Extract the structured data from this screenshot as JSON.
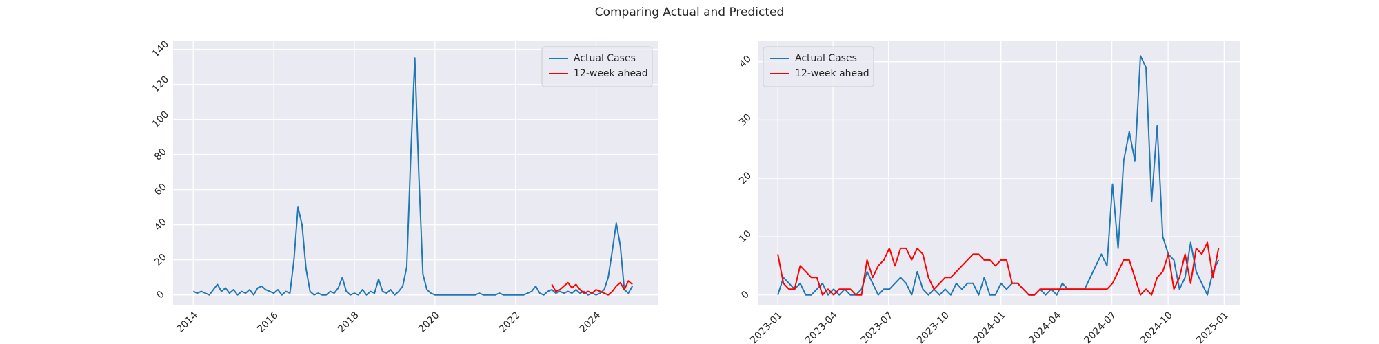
{
  "title": "Comparing Actual and Predicted",
  "chart_data": [
    {
      "type": "line",
      "legend": "upper right",
      "grid": true,
      "x": [
        2014.0,
        2014.1,
        2014.2,
        2014.3,
        2014.4,
        2014.5,
        2014.6,
        2014.7,
        2014.8,
        2014.9,
        2015.0,
        2015.1,
        2015.2,
        2015.3,
        2015.4,
        2015.5,
        2015.6,
        2015.7,
        2015.8,
        2015.9,
        2016.0,
        2016.1,
        2016.2,
        2016.3,
        2016.4,
        2016.5,
        2016.6,
        2016.7,
        2016.8,
        2016.9,
        2017.0,
        2017.1,
        2017.2,
        2017.3,
        2017.4,
        2017.5,
        2017.6,
        2017.7,
        2017.8,
        2017.9,
        2018.0,
        2018.1,
        2018.2,
        2018.3,
        2018.4,
        2018.5,
        2018.6,
        2018.7,
        2018.8,
        2018.9,
        2019.0,
        2019.1,
        2019.2,
        2019.3,
        2019.4,
        2019.5,
        2019.6,
        2019.7,
        2019.8,
        2019.9,
        2020.0,
        2020.1,
        2020.2,
        2020.3,
        2020.4,
        2020.5,
        2020.6,
        2020.7,
        2020.8,
        2020.9,
        2021.0,
        2021.1,
        2021.2,
        2021.3,
        2021.4,
        2021.5,
        2021.6,
        2021.7,
        2021.8,
        2021.9,
        2022.0,
        2022.1,
        2022.2,
        2022.3,
        2022.4,
        2022.5,
        2022.6,
        2022.7,
        2022.8,
        2022.9,
        2023.0,
        2023.1,
        2023.2,
        2023.3,
        2023.4,
        2023.5,
        2023.6,
        2023.7,
        2023.8,
        2023.9,
        2024.0,
        2024.1,
        2024.2,
        2024.3,
        2024.4,
        2024.5,
        2024.6,
        2024.7,
        2024.8,
        2024.9
      ],
      "xlim": [
        2013.5,
        2025.53
      ],
      "xticks": [
        2014,
        2016,
        2018,
        2020,
        2022,
        2024
      ],
      "ylim": [
        -6,
        144.5
      ],
      "yticks": [
        0,
        20,
        40,
        60,
        80,
        100,
        120,
        140
      ],
      "series": [
        {
          "name": "Actual Cases",
          "color": "#1f77b4",
          "values": [
            2,
            1,
            2,
            1,
            0,
            3,
            6,
            2,
            4,
            1,
            3,
            0,
            2,
            1,
            3,
            0,
            4,
            5,
            3,
            2,
            1,
            3,
            0,
            2,
            1,
            20,
            50,
            40,
            15,
            2,
            0,
            1,
            0,
            0,
            2,
            1,
            4,
            10,
            2,
            0,
            1,
            0,
            3,
            0,
            2,
            1,
            9,
            2,
            1,
            3,
            0,
            2,
            5,
            16,
            80,
            135,
            68,
            12,
            3,
            1,
            0,
            0,
            0,
            0,
            0,
            0,
            0,
            0,
            0,
            0,
            0,
            1,
            0,
            0,
            0,
            0,
            1,
            0,
            0,
            0,
            0,
            0,
            0,
            1,
            2,
            5,
            1,
            0,
            2,
            3,
            1,
            2,
            1,
            2,
            1,
            3,
            1,
            2,
            0,
            1,
            0,
            1,
            3,
            10,
            25,
            41,
            28,
            3,
            1,
            5
          ]
        },
        {
          "name": "12-week ahead",
          "color": "#ff0000",
          "values": [
            null,
            null,
            null,
            null,
            null,
            null,
            null,
            null,
            null,
            null,
            null,
            null,
            null,
            null,
            null,
            null,
            null,
            null,
            null,
            null,
            null,
            null,
            null,
            null,
            null,
            null,
            null,
            null,
            null,
            null,
            null,
            null,
            null,
            null,
            null,
            null,
            null,
            null,
            null,
            null,
            null,
            null,
            null,
            null,
            null,
            null,
            null,
            null,
            null,
            null,
            null,
            null,
            null,
            null,
            null,
            null,
            null,
            null,
            null,
            null,
            null,
            null,
            null,
            null,
            null,
            null,
            null,
            null,
            null,
            null,
            null,
            null,
            null,
            null,
            null,
            null,
            null,
            null,
            null,
            null,
            null,
            null,
            null,
            null,
            null,
            null,
            null,
            null,
            null,
            6,
            2,
            3,
            5,
            7,
            4,
            6,
            3,
            1,
            2,
            1,
            3,
            2,
            1,
            0,
            2,
            5,
            7,
            3,
            8,
            6
          ]
        }
      ]
    },
    {
      "type": "line",
      "legend": "upper left",
      "grid": true,
      "x": [
        2023.0,
        2023.025,
        2023.05,
        2023.075,
        2023.1,
        2023.125,
        2023.15,
        2023.175,
        2023.2,
        2023.225,
        2023.25,
        2023.275,
        2023.3,
        2023.325,
        2023.35,
        2023.375,
        2023.4,
        2023.425,
        2023.45,
        2023.475,
        2023.5,
        2023.525,
        2023.55,
        2023.575,
        2023.6,
        2023.625,
        2023.65,
        2023.675,
        2023.7,
        2023.725,
        2023.75,
        2023.775,
        2023.8,
        2023.825,
        2023.85,
        2023.875,
        2023.9,
        2023.925,
        2023.95,
        2023.975,
        2024.0,
        2024.025,
        2024.05,
        2024.075,
        2024.1,
        2024.125,
        2024.15,
        2024.175,
        2024.2,
        2024.225,
        2024.25,
        2024.275,
        2024.3,
        2024.325,
        2024.35,
        2024.375,
        2024.4,
        2024.425,
        2024.45,
        2024.475,
        2024.5,
        2024.525,
        2024.55,
        2024.575,
        2024.6,
        2024.625,
        2024.65,
        2024.675,
        2024.7,
        2024.725,
        2024.75,
        2024.775,
        2024.8,
        2024.825,
        2024.85,
        2024.875,
        2024.9,
        2024.925,
        2024.95,
        2024.975
      ],
      "xlim": [
        2022.91,
        2025.07
      ],
      "xticks": [
        {
          "value": 2023.0,
          "label": "2023-01"
        },
        {
          "value": 2023.247,
          "label": "2023-04"
        },
        {
          "value": 2023.496,
          "label": "2023-07"
        },
        {
          "value": 2023.748,
          "label": "2023-10"
        },
        {
          "value": 2024.0,
          "label": "2024-01"
        },
        {
          "value": 2024.249,
          "label": "2024-04"
        },
        {
          "value": 2024.497,
          "label": "2024-07"
        },
        {
          "value": 2024.749,
          "label": "2024-10"
        },
        {
          "value": 2025.0,
          "label": "2025-01"
        }
      ],
      "ylim": [
        -1.8,
        43.5
      ],
      "yticks": [
        0,
        10,
        20,
        30,
        40
      ],
      "series": [
        {
          "name": "Actual Cases",
          "color": "#1f77b4",
          "values": [
            0,
            3,
            2,
            1,
            2,
            0,
            0,
            1,
            2,
            0,
            1,
            0,
            1,
            0,
            0,
            1,
            4,
            2,
            0,
            1,
            1,
            2,
            3,
            2,
            0,
            4,
            1,
            0,
            1,
            0,
            1,
            0,
            2,
            1,
            2,
            2,
            0,
            3,
            0,
            0,
            2,
            1,
            2,
            2,
            1,
            0,
            0,
            1,
            0,
            1,
            0,
            2,
            1,
            1,
            1,
            1,
            3,
            5,
            7,
            5,
            19,
            8,
            23,
            28,
            23,
            41,
            39,
            16,
            29,
            10,
            7,
            6,
            1,
            3,
            9,
            4,
            2,
            0,
            4,
            6
          ]
        },
        {
          "name": "12-week ahead",
          "color": "#ff0000",
          "values": [
            7,
            2,
            1,
            1,
            5,
            4,
            3,
            3,
            0,
            1,
            0,
            1,
            1,
            1,
            0,
            0,
            6,
            3,
            5,
            6,
            8,
            5,
            8,
            8,
            6,
            8,
            7,
            3,
            1,
            2,
            3,
            3,
            4,
            5,
            6,
            7,
            7,
            6,
            6,
            5,
            6,
            6,
            2,
            2,
            1,
            0,
            0,
            1,
            1,
            1,
            1,
            1,
            1,
            1,
            1,
            1,
            1,
            1,
            1,
            1,
            2,
            4,
            6,
            6,
            3,
            0,
            1,
            0,
            3,
            4,
            7,
            1,
            3,
            7,
            2,
            8,
            7,
            9,
            3,
            8
          ]
        }
      ]
    }
  ]
}
